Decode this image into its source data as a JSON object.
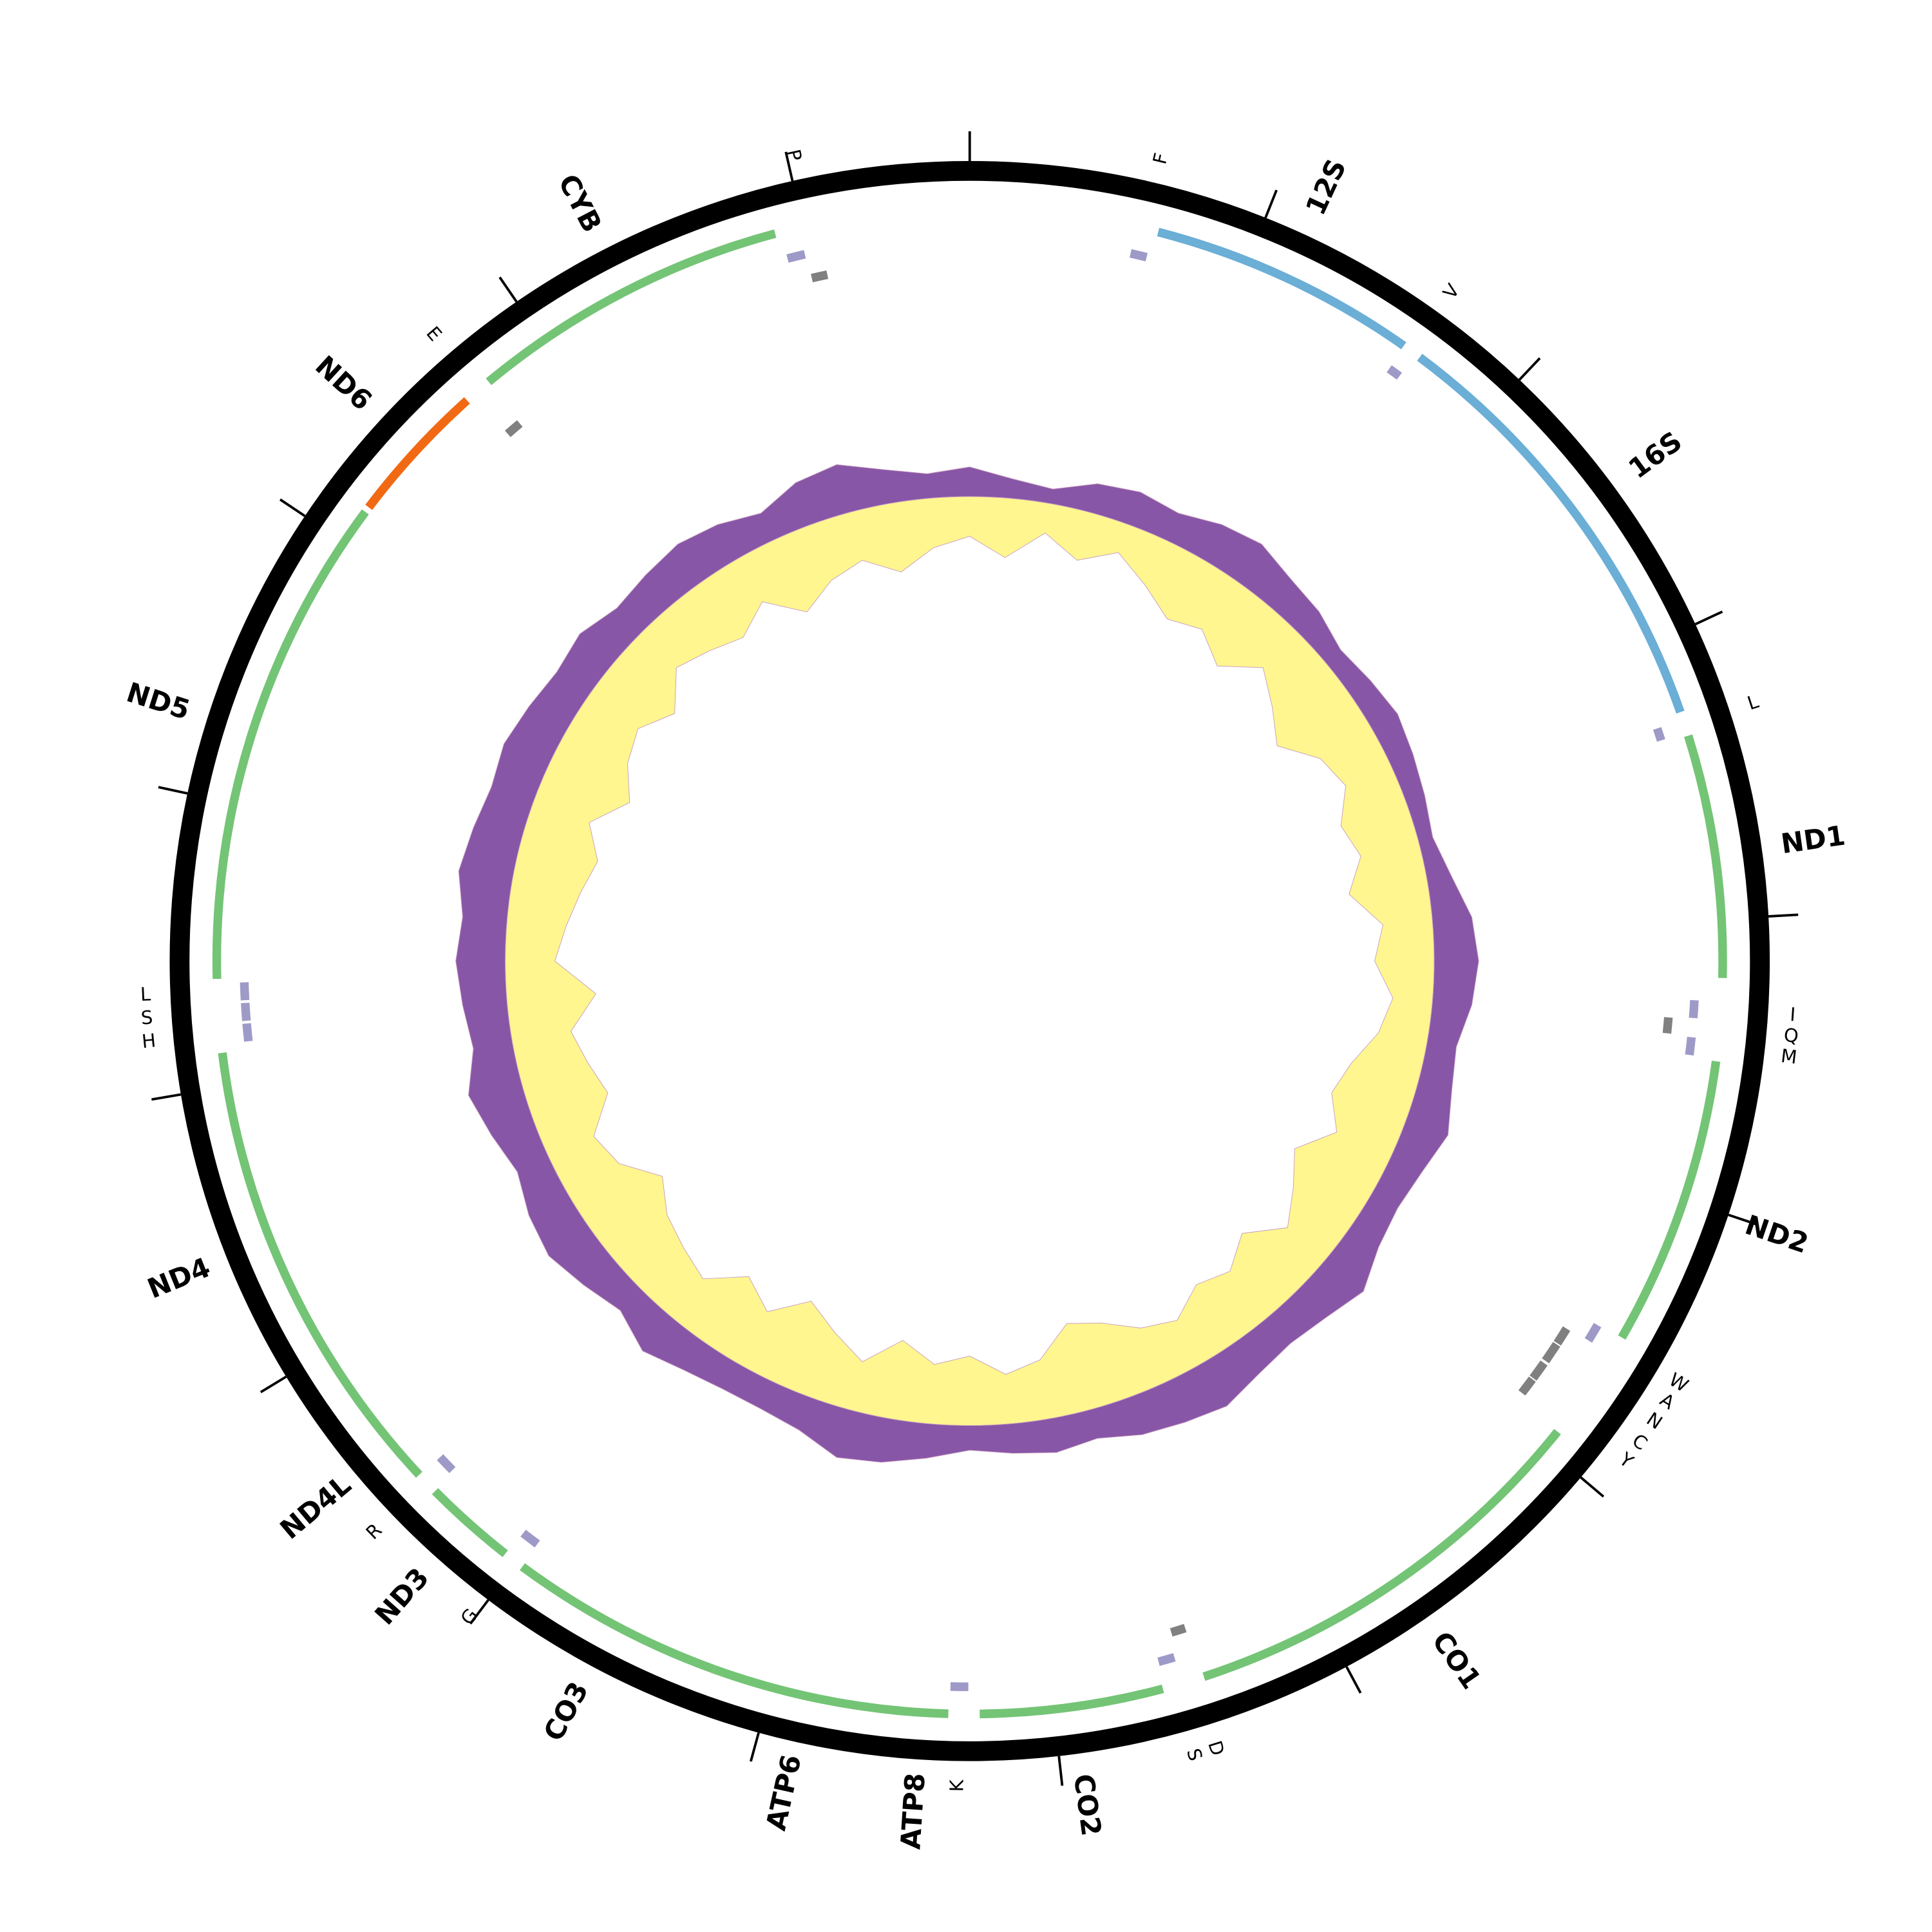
{
  "diagram": {
    "genome_length": 16590,
    "ticks": [
      0,
      1000,
      2000,
      3000,
      4000,
      5000,
      6000,
      7000,
      8000,
      9000,
      10000,
      11000,
      12000,
      13000,
      14000,
      15000,
      16000
    ],
    "colors": {
      "gene": "#74c476",
      "gene_minus": "#f16913",
      "rRNA": "#6baed6",
      "tRNA": "#9e9ac8",
      "tRNA_minus": "#808080"
    },
    "features": [
      {
        "name": "F",
        "type": "tRNA",
        "start": 590,
        "end": 650
      },
      {
        "name": "12S",
        "type": "rRNA",
        "start": 668,
        "end": 1622
      },
      {
        "name": "V",
        "type": "tRNA",
        "start": 1627,
        "end": 1673
      },
      {
        "name": "16S",
        "type": "rRNA",
        "start": 1691,
        "end": 3258
      },
      {
        "name": "L",
        "type": "tRNA",
        "start": 3286,
        "end": 3332
      },
      {
        "name": "ND1",
        "type": "gene",
        "start": 3345,
        "end": 4207
      },
      {
        "name": "I",
        "type": "tRNA",
        "start": 4290,
        "end": 4355
      },
      {
        "name": "Q",
        "type": "tRNA_minus",
        "start": 4360,
        "end": 4420
      },
      {
        "name": "M",
        "type": "tRNA",
        "start": 4425,
        "end": 4490
      },
      {
        "name": "ND2",
        "type": "gene",
        "start": 4500,
        "end": 5530
      },
      {
        "name": "W",
        "type": "tRNA",
        "start": 5535,
        "end": 5600
      },
      {
        "name": "A",
        "type": "tRNA_minus",
        "start": 5605,
        "end": 5670
      },
      {
        "name": "N",
        "type": "tRNA_minus",
        "start": 5675,
        "end": 5750
      },
      {
        "name": "C",
        "type": "tRNA_minus",
        "start": 5760,
        "end": 5830
      },
      {
        "name": "Y",
        "type": "tRNA_minus",
        "start": 5835,
        "end": 5900
      },
      {
        "name": "CO1",
        "type": "gene",
        "start": 5930,
        "end": 7460
      },
      {
        "name": "D",
        "type": "tRNA_minus",
        "start": 7470,
        "end": 7525
      },
      {
        "name": "S",
        "type": "tRNA",
        "start": 7540,
        "end": 7600
      },
      {
        "name": "CO2",
        "type": "gene",
        "start": 7610,
        "end": 8260
      },
      {
        "name": "K",
        "type": "tRNA",
        "start": 8300,
        "end": 8365
      },
      {
        "name": "ATP8",
        "type": "gene",
        "start": 8370,
        "end": 8560
      },
      {
        "name": "ATP6",
        "type": "gene",
        "start": 8530,
        "end": 9210
      },
      {
        "name": "CO3",
        "type": "gene",
        "start": 9210,
        "end": 9975
      },
      {
        "name": "G",
        "type": "tRNA",
        "start": 9980,
        "end": 10045
      },
      {
        "name": "ND3",
        "type": "gene",
        "start": 10050,
        "end": 10380
      },
      {
        "name": "R",
        "type": "tRNA",
        "start": 10390,
        "end": 10455
      },
      {
        "name": "ND4L",
        "type": "gene",
        "start": 10460,
        "end": 10740
      },
      {
        "name": "ND4",
        "type": "gene",
        "start": 10740,
        "end": 12120
      },
      {
        "name": "H",
        "type": "tRNA",
        "start": 12150,
        "end": 12215
      },
      {
        "name": "S",
        "type": "tRNA",
        "start": 12225,
        "end": 12290
      },
      {
        "name": "L",
        "type": "tRNA",
        "start": 12300,
        "end": 12365
      },
      {
        "name": "ND5",
        "type": "gene",
        "start": 12380,
        "end": 14130
      },
      {
        "name": "ND6",
        "type": "gene_minus",
        "start": 14150,
        "end": 14660
      },
      {
        "name": "E",
        "type": "tRNA_minus",
        "start": 14690,
        "end": 14750
      },
      {
        "name": "CYB",
        "type": "gene",
        "start": 14760,
        "end": 15900
      },
      {
        "name": null,
        "type": "tRNA",
        "start": 15920,
        "end": 15985
      },
      {
        "name": "P",
        "type": "tRNA_minus",
        "start": 15990,
        "end": 16050
      }
    ],
    "gc_track": {
      "outer": {
        "color": "#8856a7",
        "values": [
          0.3,
          0.2,
          0.15,
          0.3,
          0.35,
          0.3,
          0.4,
          0.45,
          0.35,
          0.3,
          0.2,
          0.25,
          0.3,
          0.25,
          0.2,
          0.15,
          0.25,
          0.4,
          0.45,
          0.4,
          0.3,
          0.35,
          0.45,
          0.35,
          0.3,
          0.35,
          0.5,
          0.4,
          0.35,
          0.4,
          0.5,
          0.45,
          0.4,
          0.3,
          0.35,
          0.3,
          0.25,
          0.35,
          0.45,
          0.5,
          0.35,
          0.3,
          0.3,
          0.35,
          0.45,
          0.3,
          0.4,
          0.5,
          0.45,
          0.35,
          0.45,
          0.55,
          0.4,
          0.45,
          0.5,
          0.45,
          0.55,
          0.5,
          0.45,
          0.5,
          0.45,
          0.4,
          0.45,
          0.35,
          0.4,
          0.45,
          0.4,
          0.3,
          0.45,
          0.5,
          0.35,
          0.25
        ]
      },
      "inner": {
        "color": "#fff68f",
        "values": [
          0.4,
          0.6,
          0.3,
          0.5,
          0.3,
          0.5,
          0.7,
          0.6,
          0.8,
          0.5,
          0.7,
          0.9,
          0.6,
          0.5,
          0.7,
          0.6,
          0.8,
          0.5,
          0.6,
          0.4,
          0.5,
          0.7,
          0.8,
          0.6,
          0.9,
          0.7,
          0.5,
          0.8,
          0.6,
          0.7,
          0.5,
          0.6,
          0.8,
          0.9,
          0.6,
          0.5,
          0.7,
          0.6,
          0.8,
          0.5,
          0.7,
          0.9,
          0.6,
          0.8,
          0.5,
          0.6,
          0.7,
          0.9,
          0.6,
          0.5,
          0.8,
          0.7,
          0.6,
          0.9,
          0.5,
          0.6,
          0.7,
          0.8,
          0.6,
          0.9,
          0.7,
          0.6,
          0.8,
          0.5,
          0.6,
          0.7,
          0.5,
          0.8,
          0.6,
          0.5,
          0.7,
          0.5
        ]
      }
    }
  }
}
